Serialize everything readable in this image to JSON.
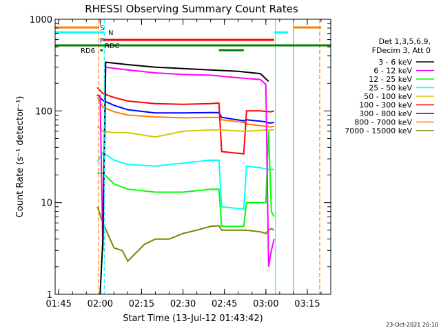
{
  "chart_data": {
    "type": "line",
    "title": "RHESSI Observing Summary Count Rates",
    "xlabel": "Start Time (13-Jul-12 01:43:42)",
    "ylabel": "Count Rate (s⁻¹ detector⁻¹)",
    "yscale": "log",
    "ylim": [
      1,
      1000
    ],
    "xlim": [
      "01:43:42",
      "03:23:30"
    ],
    "x_ticks": [
      "01:45",
      "02:00",
      "02:15",
      "02:30",
      "02:45",
      "03:00",
      "03:15"
    ],
    "y_ticks": [
      "1",
      "10",
      "100",
      "1000"
    ],
    "legend_position": "right",
    "legend_header": [
      "Det 1,3,5,6,9,",
      "FDecim 3, Att 0"
    ],
    "footer_date": "23-Oct-2021 20:10",
    "series": [
      {
        "name": "3 - 6 keV",
        "color": "#000000",
        "points": [
          [
            "02:00",
            1
          ],
          [
            "02:01",
            4
          ],
          [
            "02:02",
            340
          ],
          [
            "02:10",
            320
          ],
          [
            "02:20",
            300
          ],
          [
            "02:30",
            290
          ],
          [
            "02:40",
            280
          ],
          [
            "02:50",
            270
          ],
          [
            "02:58",
            255
          ],
          [
            "03:01",
            210
          ]
        ]
      },
      {
        "name": "6 - 12 keV",
        "color": "#ff00ff",
        "points": [
          [
            "02:00",
            150
          ],
          [
            "02:01",
            3
          ],
          [
            "02:02",
            300
          ],
          [
            "02:10",
            280
          ],
          [
            "02:20",
            260
          ],
          [
            "02:30",
            250
          ],
          [
            "02:40",
            245
          ],
          [
            "02:50",
            230
          ],
          [
            "02:58",
            220
          ],
          [
            "03:00",
            195
          ],
          [
            "03:01",
            2
          ],
          [
            "03:02",
            3
          ],
          [
            "03:03",
            4
          ]
        ]
      },
      {
        "name": "12 - 25 keV",
        "color": "#00ff00",
        "points": [
          [
            "01:59",
            21
          ],
          [
            "02:01",
            21
          ],
          [
            "02:05",
            16
          ],
          [
            "02:10",
            14
          ],
          [
            "02:20",
            13
          ],
          [
            "02:30",
            13
          ],
          [
            "02:40",
            14
          ],
          [
            "02:43",
            14
          ],
          [
            "02:44",
            5.5
          ],
          [
            "02:52",
            5.5
          ],
          [
            "02:53",
            10
          ],
          [
            "02:58",
            10
          ],
          [
            "03:00",
            10
          ],
          [
            "03:01",
            60
          ],
          [
            "03:02",
            8
          ],
          [
            "03:03",
            7
          ]
        ]
      },
      {
        "name": "25 - 50 keV",
        "color": "#00ffff",
        "points": [
          [
            "01:59",
            28
          ],
          [
            "02:01",
            35
          ],
          [
            "02:05",
            29
          ],
          [
            "02:10",
            26
          ],
          [
            "02:20",
            25
          ],
          [
            "02:30",
            27
          ],
          [
            "02:40",
            29
          ],
          [
            "02:43",
            29
          ],
          [
            "02:44",
            9
          ],
          [
            "02:52",
            8.5
          ],
          [
            "02:53",
            25
          ],
          [
            "02:58",
            24
          ],
          [
            "03:01",
            23
          ],
          [
            "03:02",
            23
          ],
          [
            "03:03",
            23
          ]
        ]
      },
      {
        "name": "50 - 100 keV",
        "color": "#cccc00",
        "points": [
          [
            "01:59",
            68
          ],
          [
            "02:01",
            60
          ],
          [
            "02:05",
            58
          ],
          [
            "02:10",
            58
          ],
          [
            "02:20",
            52
          ],
          [
            "02:30",
            60
          ],
          [
            "02:40",
            62
          ],
          [
            "02:43",
            62
          ],
          [
            "02:44",
            62
          ],
          [
            "02:52",
            60
          ],
          [
            "02:53",
            60
          ],
          [
            "03:00",
            62
          ],
          [
            "03:01",
            62
          ],
          [
            "03:02",
            62
          ],
          [
            "03:03",
            62
          ]
        ]
      },
      {
        "name": "100 - 300 keV",
        "color": "#ff0000",
        "points": [
          [
            "01:59",
            180
          ],
          [
            "02:01",
            155
          ],
          [
            "02:05",
            140
          ],
          [
            "02:10",
            128
          ],
          [
            "02:20",
            120
          ],
          [
            "02:30",
            118
          ],
          [
            "02:40",
            120
          ],
          [
            "02:43",
            122
          ],
          [
            "02:44",
            36
          ],
          [
            "02:52",
            34
          ],
          [
            "02:53",
            100
          ],
          [
            "02:58",
            100
          ],
          [
            "03:01",
            98
          ],
          [
            "03:02",
            98
          ],
          [
            "03:03",
            100
          ]
        ]
      },
      {
        "name": "300 - 800 keV",
        "color": "#0000ff",
        "points": [
          [
            "01:59",
            150
          ],
          [
            "02:01",
            130
          ],
          [
            "02:05",
            115
          ],
          [
            "02:10",
            103
          ],
          [
            "02:20",
            95
          ],
          [
            "02:30",
            95
          ],
          [
            "02:40",
            96
          ],
          [
            "02:43",
            96
          ],
          [
            "02:44",
            85
          ],
          [
            "02:52",
            78
          ],
          [
            "02:53",
            80
          ],
          [
            "03:00",
            76
          ],
          [
            "03:01",
            74
          ],
          [
            "03:02",
            74
          ],
          [
            "03:03",
            75
          ]
        ]
      },
      {
        "name": "800 - 7000 keV",
        "color": "#ff8000",
        "points": [
          [
            "01:59",
            140
          ],
          [
            "02:01",
            110
          ],
          [
            "02:05",
            98
          ],
          [
            "02:10",
            90
          ],
          [
            "02:20",
            86
          ],
          [
            "02:30",
            84
          ],
          [
            "02:40",
            85
          ],
          [
            "02:43",
            85
          ],
          [
            "02:44",
            80
          ],
          [
            "02:52",
            75
          ],
          [
            "02:53",
            72
          ],
          [
            "03:00",
            68
          ],
          [
            "03:01",
            67
          ],
          [
            "03:02",
            67
          ],
          [
            "03:03",
            68
          ]
        ]
      },
      {
        "name": "7000 - 15000 keV",
        "color": "#808000",
        "points": [
          [
            "01:59",
            9
          ],
          [
            "02:01",
            6
          ],
          [
            "02:05",
            3.2
          ],
          [
            "02:08",
            3
          ],
          [
            "02:10",
            2.3
          ],
          [
            "02:16",
            3.5
          ],
          [
            "02:20",
            4
          ],
          [
            "02:25",
            4
          ],
          [
            "02:30",
            4.6
          ],
          [
            "02:35",
            5
          ],
          [
            "02:40",
            5.5
          ],
          [
            "02:43",
            5.6
          ],
          [
            "02:44",
            5
          ],
          [
            "02:52",
            5
          ],
          [
            "02:53",
            5
          ],
          [
            "02:58",
            4.8
          ],
          [
            "03:00",
            4.6
          ],
          [
            "03:01",
            5
          ],
          [
            "03:02",
            5.2
          ],
          [
            "03:03",
            5
          ]
        ]
      }
    ],
    "flags": [
      {
        "label": "S",
        "color": "#ff8000",
        "segments": [
          [
            "01:43:42",
            "01:59:30"
          ],
          [
            "03:10",
            "03:20"
          ]
        ]
      },
      {
        "label": "N",
        "color": "#00ffff",
        "segments": [
          [
            "01:43:42",
            "02:01:30"
          ],
          [
            "03:03",
            "03:08"
          ]
        ]
      },
      {
        "label": "F",
        "color": "#ff0000",
        "segments": [
          [
            "02:01",
            "03:03"
          ]
        ]
      },
      {
        "label": "RDC",
        "color": "#008000",
        "segments": [
          [
            "01:43:42",
            "03:23:30"
          ]
        ]
      },
      {
        "label": "RD6",
        "color": "#008000",
        "segments": [
          [
            "02:43",
            "02:52"
          ],
          [
            "02:00",
            "02:01"
          ]
        ]
      }
    ],
    "vertical_markers": [
      {
        "time": "01:59:30",
        "color": "#ff8000",
        "style": "dashed"
      },
      {
        "time": "02:01:30",
        "color": "#00ffff",
        "style": "dashed"
      },
      {
        "time": "03:03:30",
        "color": "#00ffff",
        "style": "solid"
      },
      {
        "time": "03:10",
        "color": "#ff8000",
        "style": "solid"
      },
      {
        "time": "03:19:30",
        "color": "#ff8000",
        "style": "dashed"
      }
    ]
  }
}
